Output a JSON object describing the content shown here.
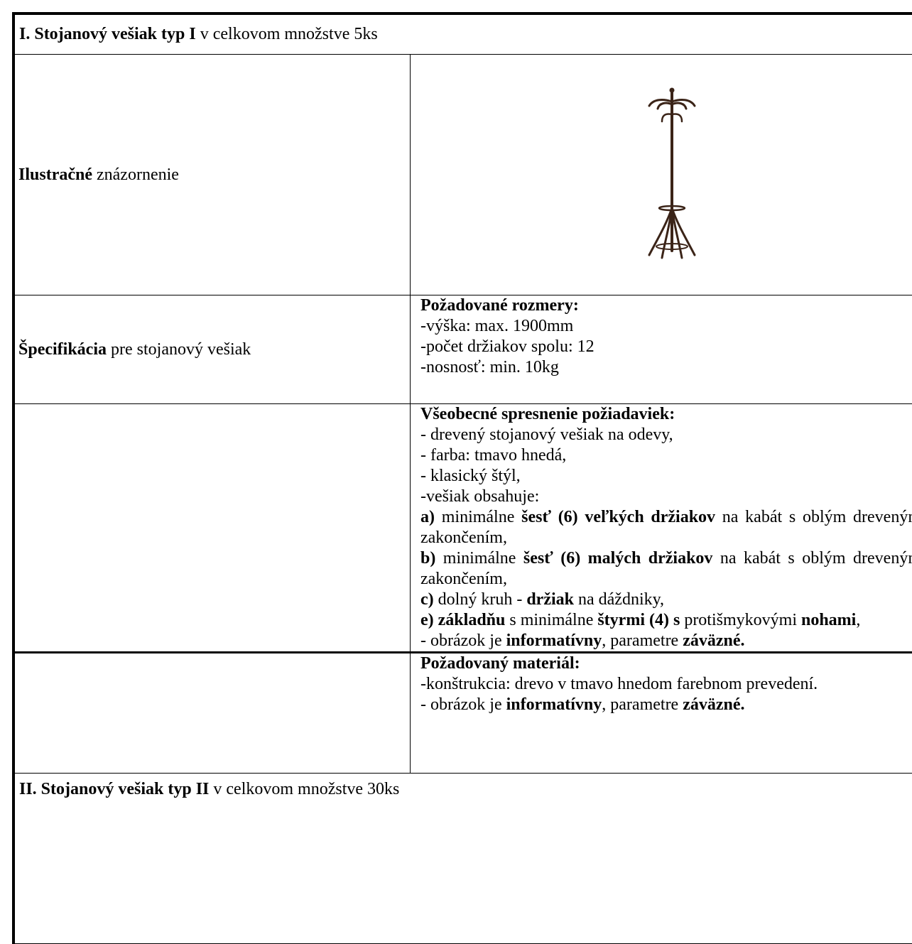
{
  "header": [
    {
      "b": "I. Stojanový vešiak typ I"
    },
    {
      "t": " v celkovom množstve 5ks"
    }
  ],
  "rows": [
    {
      "label": [
        {
          "b": "Ilustračné"
        },
        {
          "t": " znázornenie"
        }
      ]
    },
    {
      "label": [
        {
          "b": "Špecifikácia"
        },
        {
          "t": " pre stojanový vešiak"
        }
      ],
      "content": [
        [
          {
            "b": "Požadované rozmery:"
          }
        ],
        [
          {
            "t": "-výška: max. 1900mm"
          }
        ],
        [
          {
            "t": "-počet držiakov spolu: 12"
          }
        ],
        [
          {
            "t": "-nosnosť: min. 10kg"
          }
        ]
      ]
    },
    {
      "content": [
        [
          {
            "b": "Všeobecné spresnenie požiadaviek:"
          }
        ],
        [
          {
            "t": "- drevený stojanový vešiak na odevy,"
          }
        ],
        [
          {
            "t": "- farba: tmavo hnedá,"
          }
        ],
        [
          {
            "t": "- klasický štýl,"
          }
        ],
        [
          {
            "t": "-vešiak obsahuje:"
          }
        ],
        [
          {
            "b": "a)"
          },
          {
            "t": " minimálne "
          },
          {
            "b": "šesť (6) veľkých držiakov"
          },
          {
            "t": " na kabát s oblým dreveným zakončením,"
          }
        ],
        [
          {
            "b": "b)"
          },
          {
            "t": " minimálne "
          },
          {
            "b": "šesť (6) malých držiakov"
          },
          {
            "t": " na kabát s oblým dreveným zakončením,"
          }
        ],
        [
          {
            "b": "c)"
          },
          {
            "t": " dolný kruh - "
          },
          {
            "b": "držiak"
          },
          {
            "t": " na dáždniky,"
          }
        ],
        [
          {
            "b": "e) základňu"
          },
          {
            "t": " s minimálne "
          },
          {
            "b": "štyrmi (4) s"
          },
          {
            "t": " protišmykovými "
          },
          {
            "b": "nohami"
          },
          {
            "t": ","
          }
        ],
        [
          {
            "t": "- obrázok je "
          },
          {
            "b": "informatívny"
          },
          {
            "t": ", parametre "
          },
          {
            "b": "záväzné."
          }
        ]
      ]
    },
    {
      "content": [
        [
          {
            "b": "Požadovaný materiál:"
          }
        ],
        [
          {
            "t": "-konštrukcia: drevo  v tmavo hnedom farebnom prevedení."
          }
        ],
        [
          {
            "t": "- obrázok je "
          },
          {
            "b": "informatívny"
          },
          {
            "t": ", parametre "
          },
          {
            "b": "záväzné."
          }
        ]
      ]
    }
  ],
  "footer": [
    {
      "b": "II. Stojanový vešiak typ II"
    },
    {
      "t": " v celkovom množstve 30ks"
    }
  ]
}
